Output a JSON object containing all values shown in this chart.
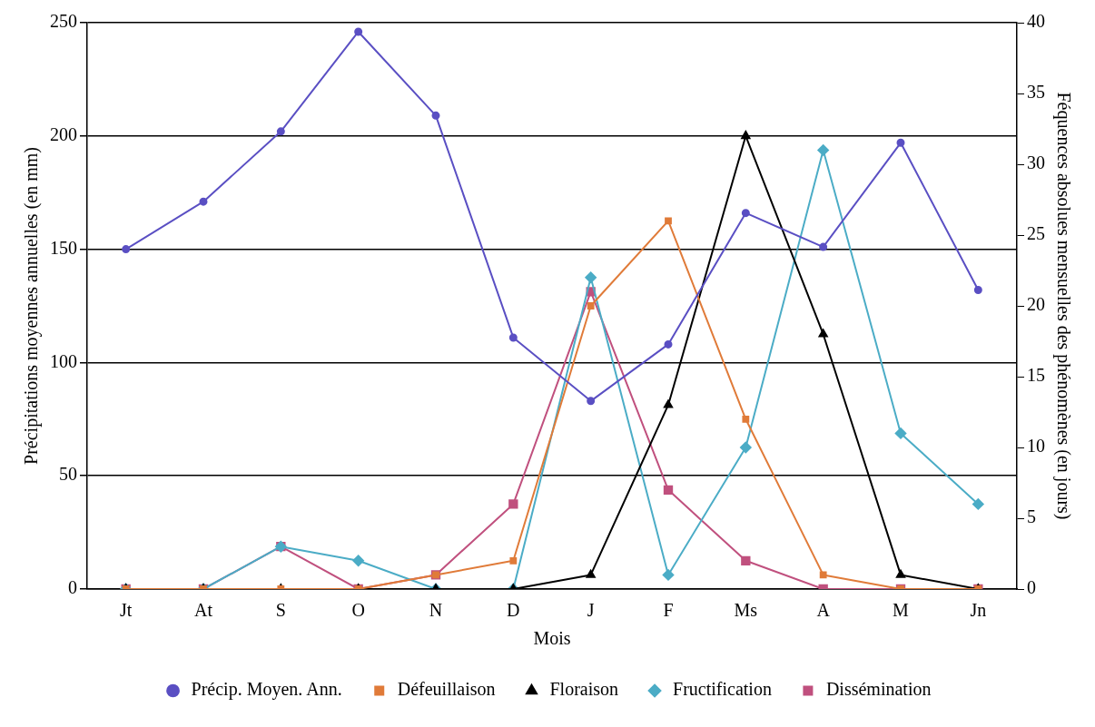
{
  "chart_data": {
    "type": "line",
    "xlabel": "Mois",
    "ylabel": "Précipitations moyennes annuelles (en mm)",
    "y2label": "Féquences absolues mensuelles des phénomènes (en jours)",
    "categories": [
      "Jt",
      "At",
      "S",
      "O",
      "N",
      "D",
      "J",
      "F",
      "Ms",
      "A",
      "M",
      "Jn"
    ],
    "ylim": [
      0,
      250
    ],
    "yticks": [
      0,
      50,
      100,
      150,
      200,
      250
    ],
    "y2lim": [
      0,
      40
    ],
    "y2ticks": [
      0,
      5,
      10,
      15,
      20,
      25,
      30,
      35,
      40
    ],
    "grid": "y",
    "legend": "bottom",
    "line_style": "solid",
    "series": [
      {
        "name": "Précip. Moyen. Ann.",
        "color": "#5a4fc3",
        "marker": "circle",
        "values": [
          150,
          171,
          202,
          246,
          209,
          111,
          83,
          108,
          166,
          151,
          197,
          132
        ]
      },
      {
        "name": "Défeuillaison",
        "color": "#e07b39",
        "marker": "square",
        "axis": "y2",
        "values": [
          0,
          0,
          0,
          0,
          1,
          2,
          20,
          26,
          12,
          1,
          0,
          0
        ]
      },
      {
        "name": "Floraison",
        "color": "#000000",
        "marker": "triangle",
        "axis": "y2",
        "values": [
          0,
          0,
          0,
          0,
          0,
          0,
          1,
          13,
          32,
          18,
          1,
          0
        ]
      },
      {
        "name": "Fructification",
        "color": "#4bacc6",
        "marker": "diamond",
        "axis": "y2",
        "values": [
          0,
          0,
          3,
          2,
          0,
          0,
          22,
          1,
          10,
          31,
          11,
          6
        ]
      },
      {
        "name": "Dissémination",
        "color": "#c0507e",
        "marker": "square",
        "axis": "y2",
        "values": [
          0,
          0,
          3,
          0,
          1,
          6,
          21,
          7,
          2,
          0,
          0,
          0
        ]
      }
    ]
  }
}
